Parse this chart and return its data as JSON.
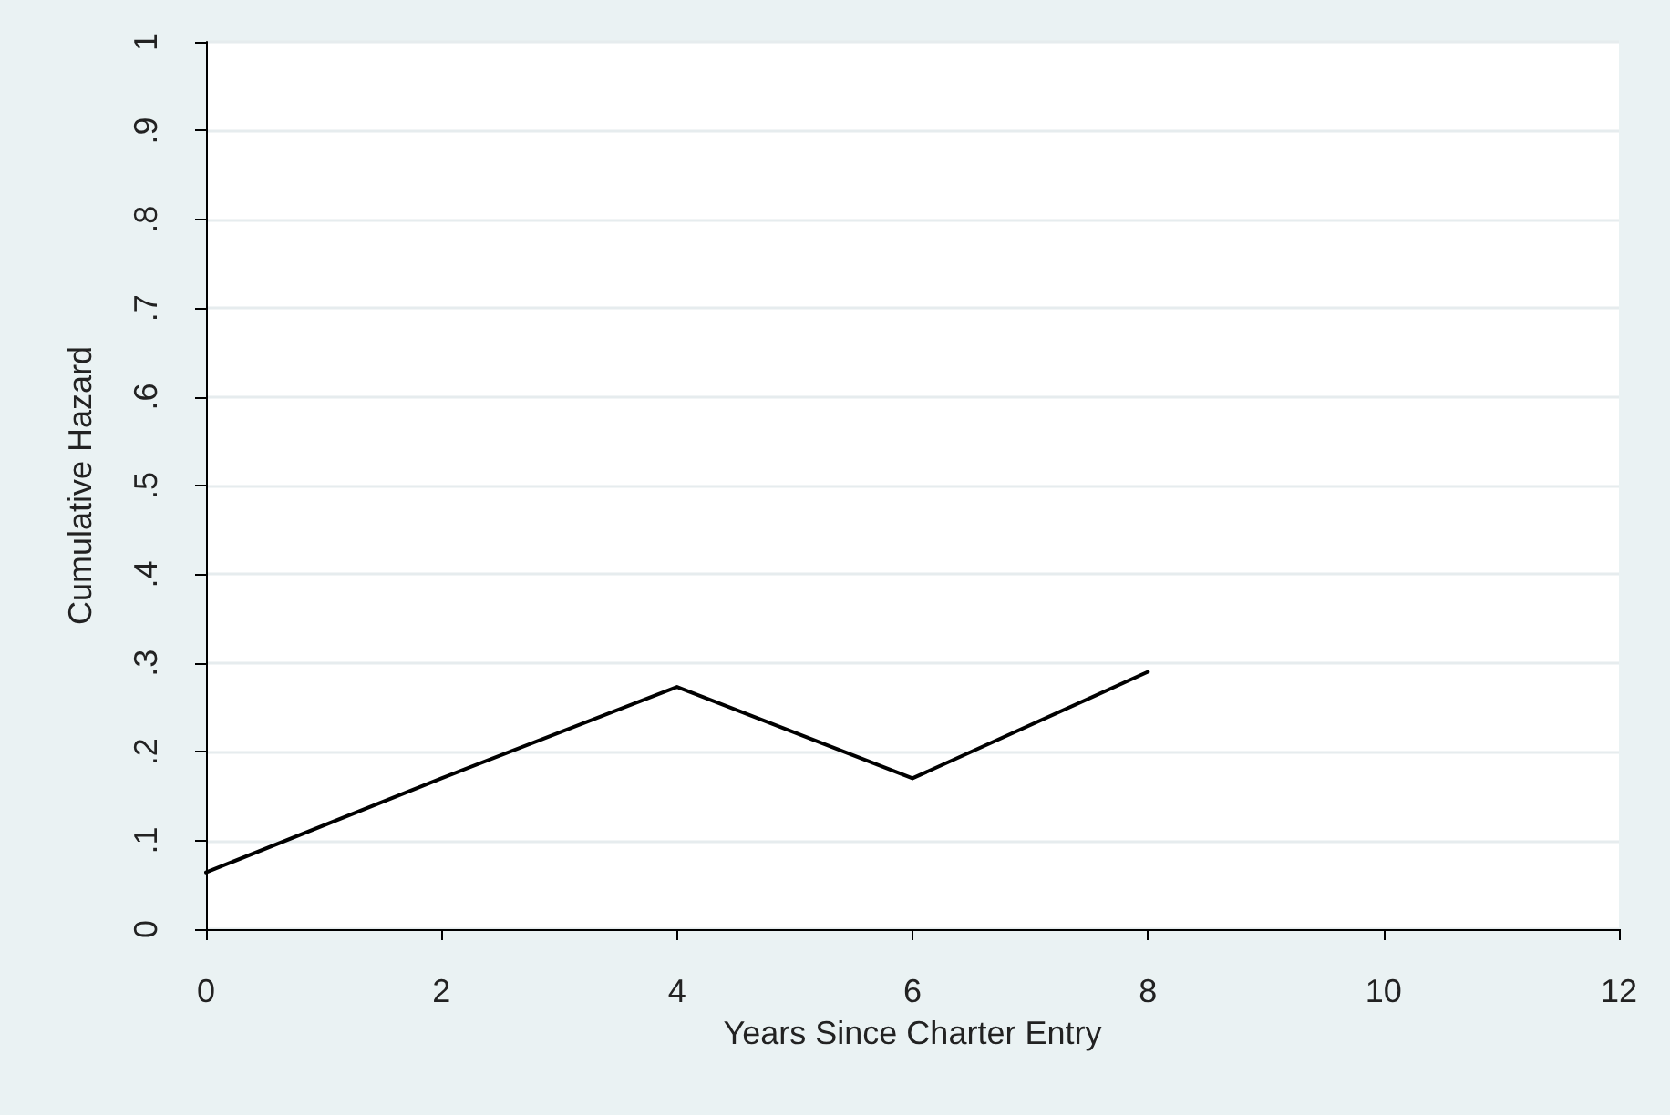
{
  "chart_data": {
    "type": "line",
    "xlabel": "Years Since Charter Entry",
    "ylabel": "Cumulative Hazard",
    "x": [
      0,
      2,
      4,
      6,
      8
    ],
    "series": [
      {
        "color": "#000000",
        "values": [
          0.064,
          0.17,
          0.273,
          0.17,
          0.29
        ]
      }
    ],
    "xlim": [
      0,
      12
    ],
    "xticks": [
      0,
      2,
      4,
      6,
      8,
      10,
      12
    ],
    "ylim": [
      0,
      1
    ],
    "yticks": [
      0,
      {
        "value": 0.1,
        "label": ".1"
      },
      {
        "value": 0.2,
        "label": ".2"
      },
      {
        "value": 0.3,
        "label": ".3"
      },
      {
        "value": 0.4,
        "label": ".4"
      },
      {
        "value": 0.5,
        "label": ".5"
      },
      {
        "value": 0.6,
        "label": ".6"
      },
      {
        "value": 0.7,
        "label": ".7"
      },
      {
        "value": 0.8,
        "label": ".8"
      },
      {
        "value": 0.9,
        "label": ".9"
      },
      1
    ],
    "grid": "y",
    "marker": "none",
    "line_style": "solid"
  }
}
